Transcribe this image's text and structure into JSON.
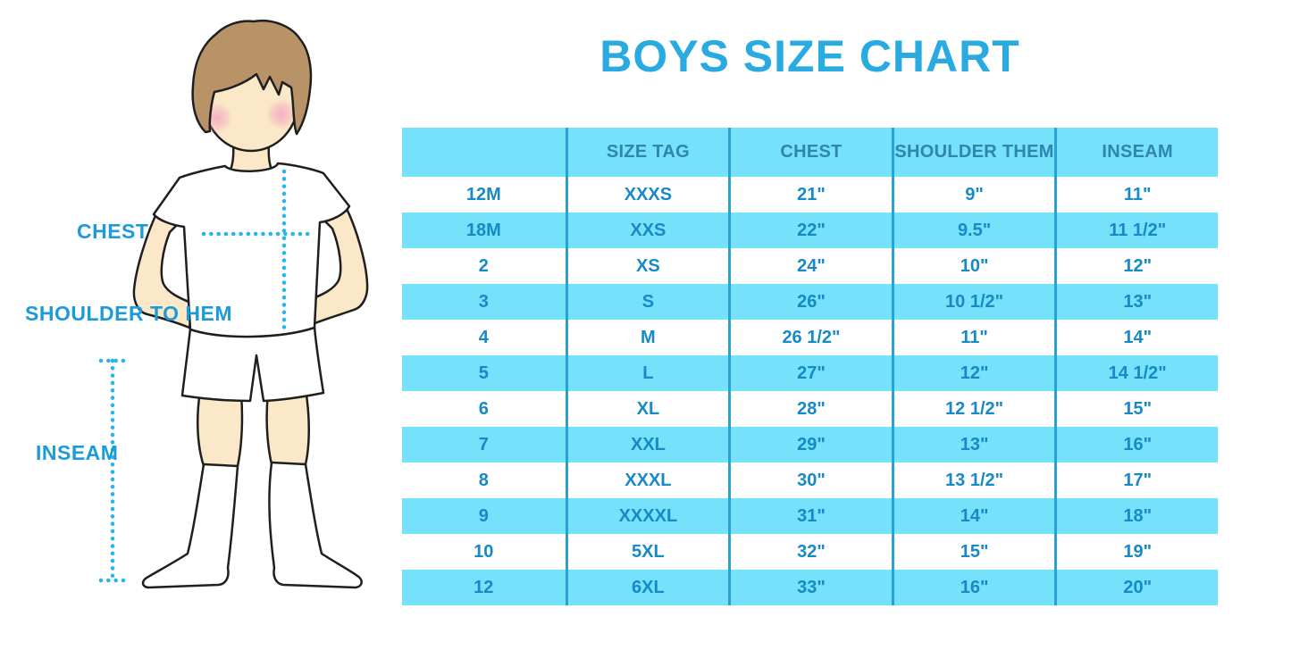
{
  "title": "BOYS SIZE CHART",
  "figure_labels": {
    "chest": "CHEST",
    "shoulder_to_hem": "SHOULDER TO HEM",
    "inseam": "INSEAM"
  },
  "colors": {
    "accent_blue": "#29ABE2",
    "table_cyan": "#75E1FA",
    "header_text": "#2E86AE",
    "cell_text": "#1689C6",
    "column_divider": "#2AA1D3",
    "measure_label": "#1B9BD9",
    "dotted_line": "#2AB4E8"
  },
  "chart_data": {
    "type": "table",
    "title": "BOYS SIZE CHART",
    "columns": [
      "",
      "SIZE TAG",
      "CHEST",
      "SHOULDER THEM",
      "INSEAM"
    ],
    "rows": [
      [
        "12M",
        "XXXS",
        "21\"",
        "9\"",
        "11\""
      ],
      [
        "18M",
        "XXS",
        "22\"",
        "9.5\"",
        "11 1/2\""
      ],
      [
        "2",
        "XS",
        "24\"",
        "10\"",
        "12\""
      ],
      [
        "3",
        "S",
        "26\"",
        "10 1/2\"",
        "13\""
      ],
      [
        "4",
        "M",
        "26 1/2\"",
        "11\"",
        "14\""
      ],
      [
        "5",
        "L",
        "27\"",
        "12\"",
        "14 1/2\""
      ],
      [
        "6",
        "XL",
        "28\"",
        "12 1/2\"",
        "15\""
      ],
      [
        "7",
        "XXL",
        "29\"",
        "13\"",
        "16\""
      ],
      [
        "8",
        "XXXL",
        "30\"",
        "13 1/2\"",
        "17\""
      ],
      [
        "9",
        "XXXXL",
        "31\"",
        "14\"",
        "18\""
      ],
      [
        "10",
        "5XL",
        "32\"",
        "15\"",
        "19\""
      ],
      [
        "12",
        "6XL",
        "33\"",
        "16\"",
        "20\""
      ]
    ],
    "layout": {
      "row_striping": "white and cyan alternating, header cyan",
      "grid": "vertical dividers only"
    }
  }
}
